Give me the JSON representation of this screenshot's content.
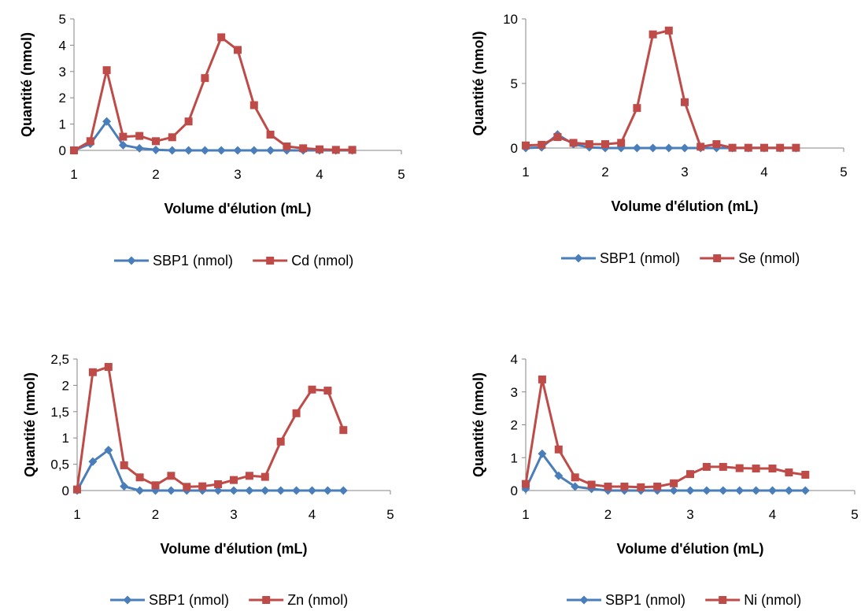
{
  "chart_data": [
    {
      "type": "line",
      "xlabel": "Volume d'élution (mL)",
      "ylabel": "Quantité (nmol)",
      "xlim": [
        1,
        5
      ],
      "ylim": [
        0,
        5
      ],
      "xticks": [
        "1",
        "2",
        "3",
        "4",
        "5"
      ],
      "yticks": [
        "0",
        "1",
        "2",
        "3",
        "4",
        "5"
      ],
      "legend_position": "bottom",
      "grid": false,
      "series": [
        {
          "name": "SBP1 (nmol)",
          "color": "#4a7ebb",
          "marker": "diamond",
          "x": [
            1.0,
            1.2,
            1.4,
            1.6,
            1.8,
            2.0,
            2.2,
            2.4,
            2.6,
            2.8,
            3.0,
            3.2,
            3.4,
            3.6,
            3.8,
            4.0,
            4.2,
            4.4
          ],
          "y": [
            0,
            0.25,
            1.1,
            0.2,
            0.08,
            0.02,
            0,
            0,
            0,
            0,
            0,
            0,
            0,
            0,
            0,
            0,
            0,
            0
          ]
        },
        {
          "name": "Cd (nmol)",
          "color": "#be4b48",
          "marker": "square",
          "x": [
            1.0,
            1.2,
            1.4,
            1.6,
            1.8,
            2.0,
            2.2,
            2.4,
            2.6,
            2.8,
            3.0,
            3.2,
            3.4,
            3.6,
            3.8,
            4.0,
            4.2,
            4.4
          ],
          "y": [
            0,
            0.35,
            3.05,
            0.52,
            0.55,
            0.35,
            0.5,
            1.1,
            2.75,
            4.3,
            3.82,
            1.72,
            0.6,
            0.15,
            0.08,
            0.04,
            0.02,
            0.02
          ]
        }
      ]
    },
    {
      "type": "line",
      "xlabel": "Volume d'élution (mL)",
      "ylabel": "Quantité (nmol)",
      "xlim": [
        1,
        5
      ],
      "ylim": [
        0,
        10
      ],
      "xticks": [
        "1",
        "2",
        "3",
        "4",
        "5"
      ],
      "yticks": [
        "0",
        "5",
        "10"
      ],
      "legend_position": "bottom",
      "grid": false,
      "series": [
        {
          "name": "SBP1 (nmol)",
          "color": "#4a7ebb",
          "marker": "diamond",
          "x": [
            1.0,
            1.2,
            1.4,
            1.6,
            1.8,
            2.0,
            2.2,
            2.4,
            2.6,
            2.8,
            3.0,
            3.2,
            3.4,
            3.6,
            3.8,
            4.0,
            4.2,
            4.4
          ],
          "y": [
            0,
            0.05,
            1.05,
            0.3,
            0.05,
            0,
            0,
            0,
            0,
            0,
            0,
            0,
            0,
            0,
            0,
            0,
            0,
            0
          ]
        },
        {
          "name": "Se (nmol)",
          "color": "#be4b48",
          "marker": "square",
          "x": [
            1.0,
            1.2,
            1.4,
            1.6,
            1.8,
            2.0,
            2.2,
            2.4,
            2.6,
            2.8,
            3.0,
            3.2,
            3.4,
            3.6,
            3.8,
            4.0,
            4.2,
            4.4
          ],
          "y": [
            0.2,
            0.25,
            0.85,
            0.4,
            0.3,
            0.3,
            0.4,
            3.1,
            8.8,
            9.1,
            3.55,
            0.1,
            0.3,
            0.02,
            0.02,
            0.02,
            0.02,
            0.02
          ]
        }
      ]
    },
    {
      "type": "line",
      "xlabel": "Volume d'élution (mL)",
      "ylabel": "Quantité (nmol)",
      "xlim": [
        1,
        5
      ],
      "ylim": [
        0,
        2.5
      ],
      "xticks": [
        "1",
        "2",
        "3",
        "4",
        "5"
      ],
      "yticks": [
        "0",
        "0,5",
        "1",
        "1,5",
        "2",
        "2,5"
      ],
      "legend_position": "bottom",
      "grid": false,
      "series": [
        {
          "name": "SBP1 (nmol)",
          "color": "#4a7ebb",
          "marker": "diamond",
          "x": [
            1.0,
            1.2,
            1.4,
            1.6,
            1.8,
            2.0,
            2.2,
            2.4,
            2.6,
            2.8,
            3.0,
            3.2,
            3.4,
            3.6,
            3.8,
            4.0,
            4.2,
            4.4
          ],
          "y": [
            0,
            0.55,
            0.77,
            0.08,
            0,
            0,
            0,
            0,
            0,
            0,
            0,
            0,
            0,
            0,
            0,
            0,
            0,
            0
          ]
        },
        {
          "name": "Zn (nmol)",
          "color": "#be4b48",
          "marker": "square",
          "x": [
            1.0,
            1.2,
            1.4,
            1.6,
            1.8,
            2.0,
            2.2,
            2.4,
            2.6,
            2.8,
            3.0,
            3.2,
            3.4,
            3.6,
            3.8,
            4.0,
            4.2,
            4.4
          ],
          "y": [
            0.02,
            2.25,
            2.35,
            0.48,
            0.25,
            0.1,
            0.28,
            0.07,
            0.08,
            0.12,
            0.2,
            0.28,
            0.26,
            0.93,
            1.47,
            1.92,
            1.9,
            1.15
          ]
        }
      ]
    },
    {
      "type": "line",
      "xlabel": "Volume d'élution (mL)",
      "ylabel": "Quantité (nmol)",
      "xlim": [
        1,
        5
      ],
      "ylim": [
        0,
        4
      ],
      "xticks": [
        "1",
        "2",
        "3",
        "4",
        "5"
      ],
      "yticks": [
        "0",
        "1",
        "2",
        "3",
        "4"
      ],
      "legend_position": "bottom",
      "grid": false,
      "series": [
        {
          "name": "SBP1 (nmol)",
          "color": "#4a7ebb",
          "marker": "diamond",
          "x": [
            1.0,
            1.2,
            1.4,
            1.6,
            1.8,
            2.0,
            2.2,
            2.4,
            2.6,
            2.8,
            3.0,
            3.2,
            3.4,
            3.6,
            3.8,
            4.0,
            4.2,
            4.4
          ],
          "y": [
            0.05,
            1.12,
            0.45,
            0.12,
            0.05,
            0,
            0,
            0,
            0,
            0,
            0,
            0,
            0,
            0,
            0,
            0,
            0,
            0
          ]
        },
        {
          "name": "Ni (nmol)",
          "color": "#be4b48",
          "marker": "square",
          "x": [
            1.0,
            1.2,
            1.4,
            1.6,
            1.8,
            2.0,
            2.2,
            2.4,
            2.6,
            2.8,
            3.0,
            3.2,
            3.4,
            3.6,
            3.8,
            4.0,
            4.2,
            4.4
          ],
          "y": [
            0.2,
            3.38,
            1.25,
            0.4,
            0.18,
            0.12,
            0.12,
            0.1,
            0.12,
            0.22,
            0.5,
            0.72,
            0.72,
            0.68,
            0.67,
            0.67,
            0.55,
            0.48
          ]
        }
      ]
    }
  ]
}
